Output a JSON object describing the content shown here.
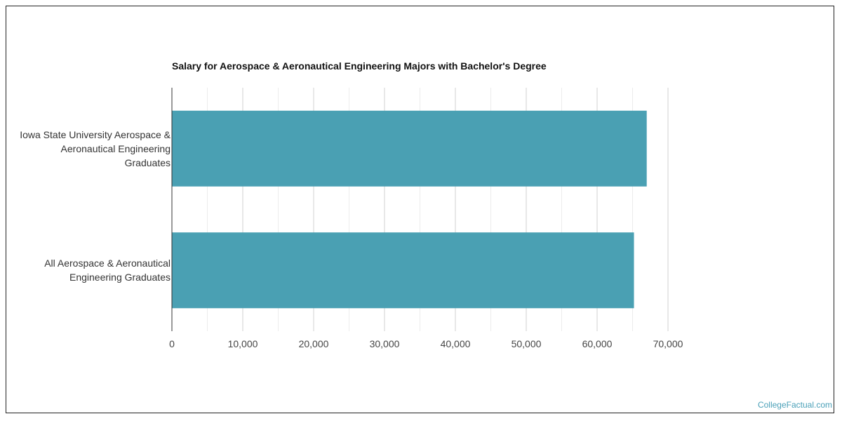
{
  "chart_data": {
    "type": "bar",
    "orientation": "horizontal",
    "title": "Salary for Aerospace & Aeronautical Engineering Majors with Bachelor's Degree",
    "categories": [
      "Iowa State University Aerospace & Aeronautical Engineering Graduates",
      "All Aerospace & Aeronautical Engineering Graduates"
    ],
    "category_lines": [
      [
        "Iowa State University Aerospace &",
        "Aeronautical Engineering",
        "Graduates"
      ],
      [
        "All Aerospace & Aeronautical",
        "Engineering Graduates"
      ]
    ],
    "values": [
      67000,
      65200
    ],
    "xlim": [
      0,
      70000
    ],
    "ticks": [
      "0",
      "10,000",
      "20,000",
      "30,000",
      "40,000",
      "50,000",
      "60,000",
      "70,000"
    ],
    "tick_values": [
      0,
      10000,
      20000,
      30000,
      40000,
      50000,
      60000,
      70000
    ],
    "bar_color": "#4aa0b3",
    "grid": true
  },
  "watermark": "CollegeFactual.com"
}
